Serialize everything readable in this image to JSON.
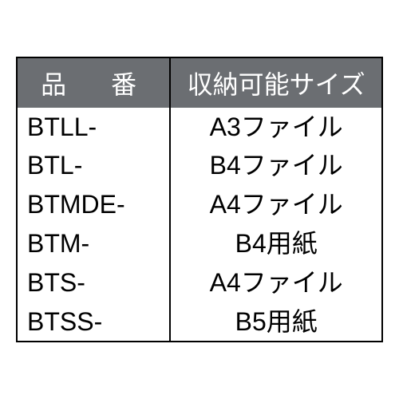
{
  "table": {
    "type": "table",
    "columns": [
      {
        "header": "品　番",
        "align": "left",
        "width": "42%"
      },
      {
        "header": "収納可能サイズ",
        "align": "center",
        "width": "58%"
      }
    ],
    "rows": [
      {
        "code": "BTLL-",
        "size": "A3ファイル"
      },
      {
        "code": "BTL-",
        "size": "B4ファイル"
      },
      {
        "code": "BTMDE-",
        "size": "A4ファイル"
      },
      {
        "code": "BTM-",
        "size": "B4用紙"
      },
      {
        "code": "BTS-",
        "size": "A4ファイル"
      },
      {
        "code": "BTSS-",
        "size": "B5用紙"
      }
    ],
    "header_bg_color": "#6b6e72",
    "header_text_color": "#ffffff",
    "border_color": "#000000",
    "cell_text_color": "#000000",
    "background_color": "#ffffff",
    "font_size": 32,
    "border_width": 2
  }
}
